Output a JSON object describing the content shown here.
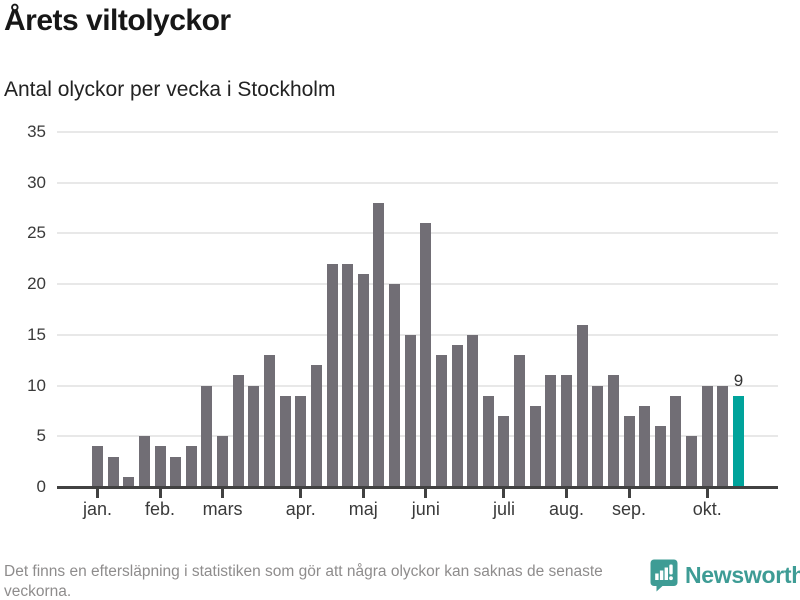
{
  "title": "Årets viltolyckor",
  "subtitle": "Antal olyckor per vecka i Stockholm",
  "footer": {
    "note": "Det finns en eftersläpning i statistiken som gör att några olyckor kan saknas de senaste veckorna.",
    "brand": "Newsworthy"
  },
  "colors": {
    "bar": "#716e75",
    "highlight": "#00a39b",
    "gridline": "#e8e8e8",
    "axis": "#414141",
    "axis_text": "#3a3a3a",
    "brand_teal": "#3e9c95",
    "note_gray": "#8e8c8c"
  },
  "chart_data": {
    "type": "bar",
    "title": "Årets viltolyckor",
    "subtitle": "Antal olyckor per vecka i Stockholm",
    "xlabel": "",
    "ylabel": "Antal olyckor per vecka",
    "grid": true,
    "ylim": [
      0,
      35
    ],
    "y_ticks": [
      0,
      5,
      10,
      15,
      20,
      25,
      30,
      35
    ],
    "x_unit": "vecka",
    "values": [
      4,
      3,
      1,
      5,
      4,
      3,
      4,
      10,
      5,
      11,
      10,
      13,
      9,
      9,
      12,
      22,
      22,
      21,
      28,
      20,
      15,
      26,
      13,
      14,
      15,
      9,
      7,
      13,
      8,
      11,
      11,
      16,
      10,
      11,
      7,
      8,
      6,
      9,
      5,
      10,
      10,
      9
    ],
    "month_ticks": [
      {
        "label": "jan.",
        "week": 1
      },
      {
        "label": "feb.",
        "week": 5
      },
      {
        "label": "mars",
        "week": 9
      },
      {
        "label": "apr.",
        "week": 14
      },
      {
        "label": "maj",
        "week": 18
      },
      {
        "label": "juni",
        "week": 22
      },
      {
        "label": "juli",
        "week": 27
      },
      {
        "label": "aug.",
        "week": 31
      },
      {
        "label": "sep.",
        "week": 35
      },
      {
        "label": "okt.",
        "week": 40
      }
    ],
    "highlight_index": 41,
    "highlight_label": "9"
  }
}
